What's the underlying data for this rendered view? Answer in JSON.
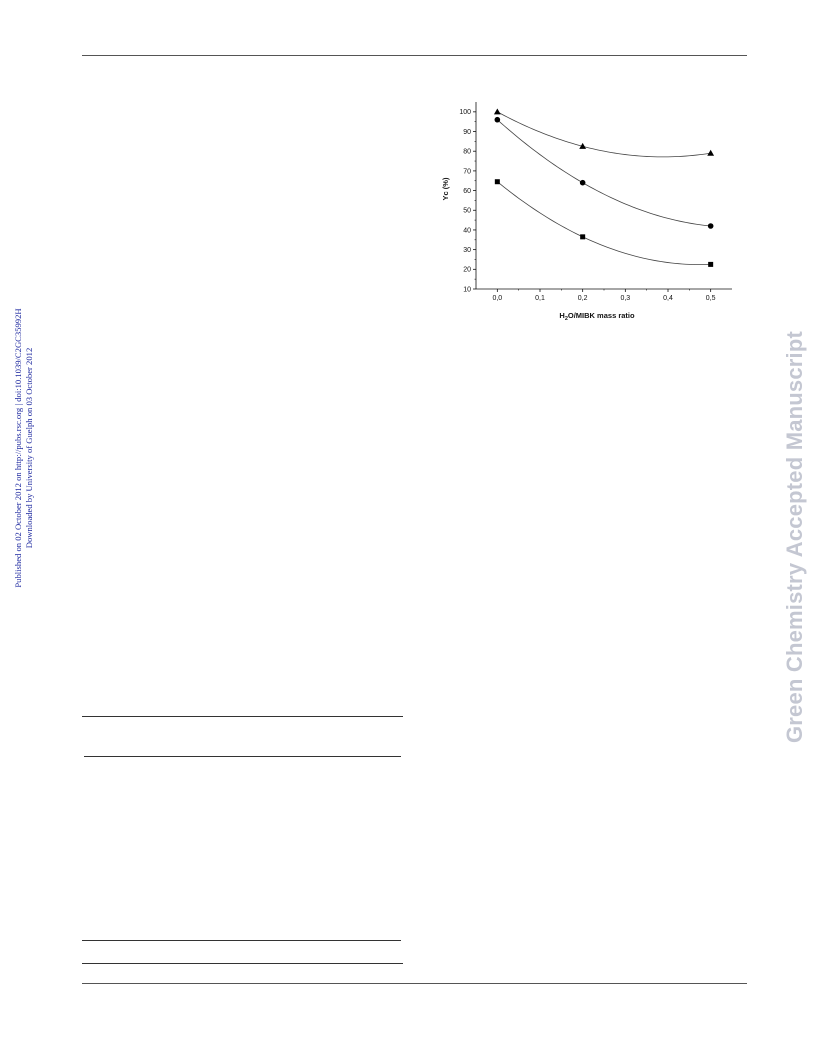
{
  "side_note": {
    "line1": "Published on 02 October 2012 on http://pubs.rsc.org | doi:10.1039/C2GC35992H",
    "line2": "Downloaded by University of Guelph on 03 October 2012"
  },
  "watermark": "Green Chemistry Accepted Manuscript",
  "chart_data": {
    "type": "scatter",
    "xlabel": "H2O/MIBK mass ratio",
    "xlabel_main": "H",
    "xlabel_sub": "2",
    "xlabel_rest": "O/MIBK mass ratio",
    "ylabel": "Yc (%)",
    "xlim": [
      -0.05,
      0.55
    ],
    "ylim": [
      10,
      105
    ],
    "xticks": [
      0.0,
      0.1,
      0.2,
      0.3,
      0.4,
      0.5
    ],
    "xtick_labels": [
      "0,0",
      "0,1",
      "0,2",
      "0,3",
      "0,4",
      "0,5"
    ],
    "yticks": [
      10,
      20,
      30,
      40,
      50,
      60,
      70,
      80,
      90,
      100
    ],
    "ytick_labels": [
      "10",
      "20",
      "30",
      "40",
      "50",
      "60",
      "70",
      "80",
      "90",
      "100"
    ],
    "series": [
      {
        "marker": "triangle",
        "x": [
          0.0,
          0.2,
          0.5
        ],
        "y": [
          100,
          82.5,
          79
        ]
      },
      {
        "marker": "circle",
        "x": [
          0.0,
          0.2,
          0.5
        ],
        "y": [
          96,
          64,
          42
        ]
      },
      {
        "marker": "square",
        "x": [
          0.0,
          0.2,
          0.5
        ],
        "y": [
          64.5,
          36.5,
          22.5
        ]
      }
    ]
  }
}
